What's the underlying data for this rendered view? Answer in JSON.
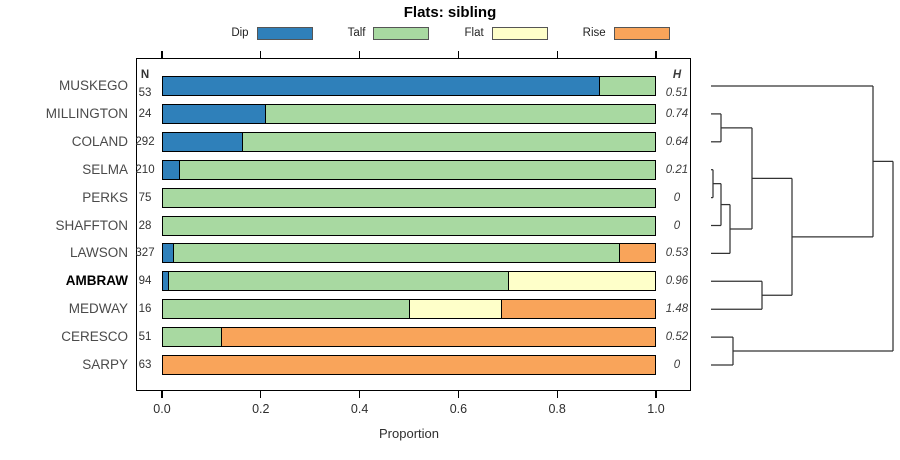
{
  "chart_data": {
    "type": "bar",
    "orientation": "horizontal_stacked",
    "title": "Flats: sibling",
    "xlabel": "Proportion",
    "xlim": [
      0,
      1
    ],
    "x_ticks": [
      "0.0",
      "0.2",
      "0.4",
      "0.6",
      "0.8",
      "1.0"
    ],
    "grid": false,
    "n_header": "N",
    "h_header": "H",
    "colors": {
      "dip": "#2f80ba",
      "talf": "#a8d9a1",
      "flat": "#feffc9",
      "rise": "#f9a45a"
    },
    "legend": [
      {
        "label": "Dip",
        "key": "dip"
      },
      {
        "label": "Talf",
        "key": "talf"
      },
      {
        "label": "Flat",
        "key": "flat"
      },
      {
        "label": "Rise",
        "key": "rise"
      }
    ],
    "rows": [
      {
        "name": "MUSKEGO",
        "n": "53",
        "h": "0.51",
        "bold": false,
        "segments": [
          {
            "cat": "dip",
            "p": 0.887
          },
          {
            "cat": "talf",
            "p": 0.113
          }
        ]
      },
      {
        "name": "MILLINGTON",
        "n": "24",
        "h": "0.74",
        "bold": false,
        "segments": [
          {
            "cat": "dip",
            "p": 0.208
          },
          {
            "cat": "talf",
            "p": 0.792
          }
        ]
      },
      {
        "name": "COLAND",
        "n": "292",
        "h": "0.64",
        "bold": false,
        "segments": [
          {
            "cat": "dip",
            "p": 0.161
          },
          {
            "cat": "talf",
            "p": 0.839
          }
        ]
      },
      {
        "name": "SELMA",
        "n": "210",
        "h": "0.21",
        "bold": false,
        "segments": [
          {
            "cat": "dip",
            "p": 0.033
          },
          {
            "cat": "talf",
            "p": 0.967
          }
        ]
      },
      {
        "name": "PERKS",
        "n": "75",
        "h": "0",
        "bold": false,
        "segments": [
          {
            "cat": "talf",
            "p": 1.0
          }
        ]
      },
      {
        "name": "SHAFFTON",
        "n": "28",
        "h": "0",
        "bold": false,
        "segments": [
          {
            "cat": "talf",
            "p": 1.0
          }
        ]
      },
      {
        "name": "LAWSON",
        "n": "327",
        "h": "0.53",
        "bold": false,
        "segments": [
          {
            "cat": "dip",
            "p": 0.021
          },
          {
            "cat": "talf",
            "p": 0.906
          },
          {
            "cat": "rise",
            "p": 0.073
          }
        ]
      },
      {
        "name": "AMBRAW",
        "n": "94",
        "h": "0.96",
        "bold": true,
        "segments": [
          {
            "cat": "dip",
            "p": 0.011
          },
          {
            "cat": "talf",
            "p": 0.691
          },
          {
            "cat": "flat",
            "p": 0.298
          }
        ]
      },
      {
        "name": "MEDWAY",
        "n": "16",
        "h": "1.48",
        "bold": false,
        "segments": [
          {
            "cat": "talf",
            "p": 0.5
          },
          {
            "cat": "flat",
            "p": 0.188
          },
          {
            "cat": "rise",
            "p": 0.312
          }
        ]
      },
      {
        "name": "CERESCO",
        "n": "51",
        "h": "0.52",
        "bold": false,
        "segments": [
          {
            "cat": "talf",
            "p": 0.118
          },
          {
            "cat": "rise",
            "p": 0.882
          }
        ]
      },
      {
        "name": "SARPY",
        "n": "63",
        "h": "0",
        "bold": false,
        "segments": [
          {
            "cat": "rise",
            "p": 1.0
          }
        ]
      }
    ],
    "dendrogram": {
      "leaf_x": 711,
      "merges": [
        {
          "id": "M_SP",
          "a": "SELMA",
          "b": "PERKS",
          "x": 713
        },
        {
          "id": "M_MC",
          "a": "MILLINGTON",
          "b": "COLAND",
          "x": 721
        },
        {
          "id": "M_SPS",
          "a": "M_SP",
          "b": "SHAFFTON",
          "x": 721
        },
        {
          "id": "M_SPSL",
          "a": "M_SPS",
          "b": "LAWSON",
          "x": 730
        },
        {
          "id": "M_CS",
          "a": "CERESCO",
          "b": "SARPY",
          "x": 733
        },
        {
          "id": "M_LEFT",
          "a": "M_MC",
          "b": "M_SPSL",
          "x": 752
        },
        {
          "id": "M_AM",
          "a": "AMBRAW",
          "b": "MEDWAY",
          "x": 762
        },
        {
          "id": "M_MID",
          "a": "M_LEFT",
          "b": "M_AM",
          "x": 792
        },
        {
          "id": "M_TOP",
          "a": "MUSKEGO",
          "b": "M_MID",
          "x": 873
        },
        {
          "id": "ROOT",
          "a": "M_TOP",
          "b": "M_CS",
          "x": 893
        }
      ]
    }
  }
}
